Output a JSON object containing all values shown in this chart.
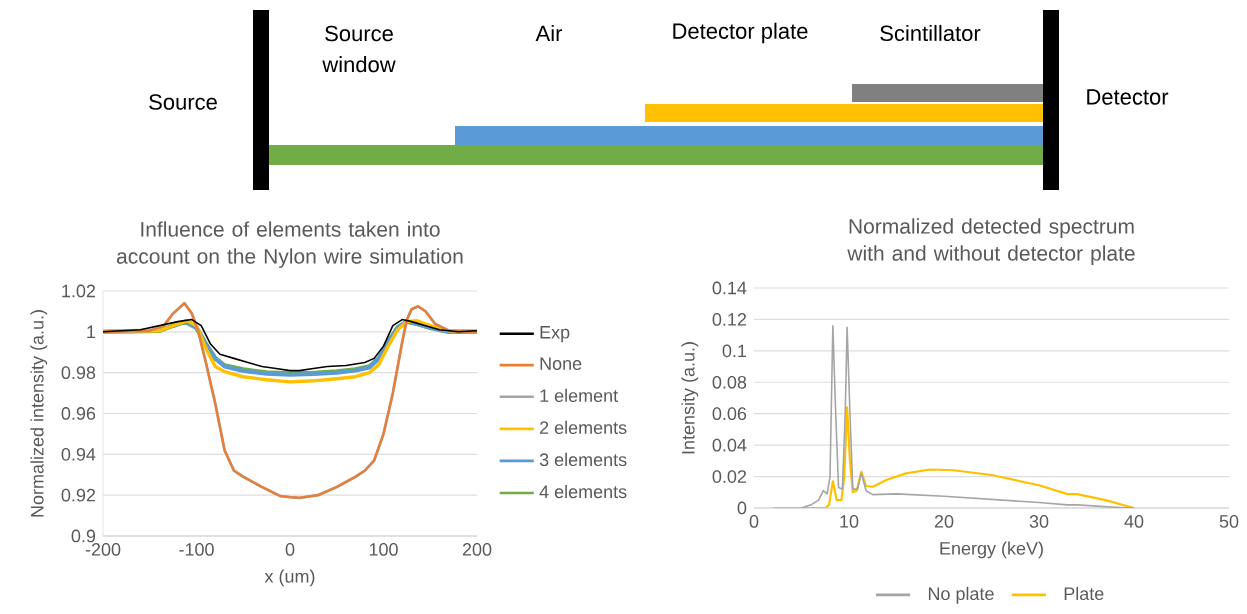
{
  "chart_data": [
    {
      "type": "other",
      "annotations": [
        "Source",
        "Source window",
        "Air",
        "Detector plate",
        "Scintillator",
        "Detector"
      ]
    },
    {
      "type": "line",
      "title": "Influence of elements taken into account on the Nylon wire simulation",
      "xlabel": "x (um)",
      "ylabel": "Normalized intensity (a.u.)",
      "xlim": [
        -200,
        200
      ],
      "ylim": [
        0.9,
        1.02
      ],
      "xticks": [
        -200,
        -100,
        0,
        100,
        200
      ],
      "yticks": [
        0.9,
        0.92,
        0.94,
        0.96,
        0.98,
        1,
        1.02
      ],
      "grid": "y",
      "legend": "right",
      "series": [
        {
          "name": "Exp",
          "color": "#000000",
          "x": [
            -200,
            -160,
            -140,
            -120,
            -105,
            -95,
            -85,
            -75,
            -60,
            -45,
            -30,
            -15,
            0,
            10,
            25,
            40,
            60,
            80,
            90,
            100,
            110,
            120,
            130,
            145,
            160,
            180,
            200
          ],
          "values": [
            1.0,
            1.001,
            1.003,
            1.005,
            1.006,
            1.003,
            0.994,
            0.989,
            0.987,
            0.985,
            0.983,
            0.982,
            0.981,
            0.981,
            0.982,
            0.983,
            0.9835,
            0.985,
            0.987,
            0.993,
            1.003,
            1.006,
            1.005,
            1.003,
            1.001,
            1.0,
            1.0005
          ]
        },
        {
          "name": "None",
          "color": "#ed7d31",
          "x": [
            -200,
            -150,
            -135,
            -125,
            -113,
            -105,
            -98,
            -90,
            -80,
            -70,
            -60,
            -50,
            -30,
            -10,
            0,
            10,
            30,
            50,
            70,
            80,
            90,
            100,
            110,
            120,
            125,
            130,
            137,
            145,
            155,
            170,
            200
          ],
          "values": [
            1.0,
            1.0005,
            1.003,
            1.009,
            1.014,
            1.009,
            1.0,
            0.985,
            0.965,
            0.942,
            0.932,
            0.929,
            0.924,
            0.9195,
            0.919,
            0.9187,
            0.92,
            0.924,
            0.929,
            0.932,
            0.937,
            0.95,
            0.97,
            0.995,
            1.006,
            1.011,
            1.0125,
            1.01,
            1.004,
            1.0005,
            1.0
          ]
        },
        {
          "name": "1 element",
          "color": "#a5a5a5",
          "x": [
            -200,
            -150,
            -135,
            -125,
            -113,
            -105,
            -98,
            -90,
            -80,
            -70,
            -60,
            -50,
            -30,
            -10,
            0,
            10,
            30,
            50,
            70,
            80,
            90,
            100,
            110,
            120,
            125,
            130,
            137,
            145,
            155,
            170,
            200
          ],
          "values": [
            1.0,
            1.0005,
            1.003,
            1.009,
            1.014,
            1.009,
            1.0,
            0.985,
            0.965,
            0.942,
            0.932,
            0.929,
            0.924,
            0.9195,
            0.919,
            0.9187,
            0.92,
            0.924,
            0.929,
            0.932,
            0.937,
            0.95,
            0.97,
            0.995,
            1.006,
            1.011,
            1.0125,
            1.01,
            1.004,
            1.0005,
            1.0
          ]
        },
        {
          "name": "2 elements",
          "color": "#ffc000",
          "x": [
            -200,
            -140,
            -125,
            -110,
            -100,
            -90,
            -80,
            -70,
            -50,
            -25,
            0,
            25,
            50,
            70,
            85,
            95,
            105,
            115,
            125,
            135,
            150,
            170,
            200
          ],
          "values": [
            1.0,
            1.0005,
            1.003,
            1.0055,
            1.003,
            0.992,
            0.983,
            0.9805,
            0.978,
            0.9765,
            0.9755,
            0.976,
            0.977,
            0.978,
            0.98,
            0.984,
            0.993,
            1.001,
            1.005,
            1.0055,
            1.003,
            1.0005,
            1.0
          ]
        },
        {
          "name": "3 elements",
          "color": "#5b9bd5",
          "x": [
            -125,
            -112,
            -100,
            -90,
            -80,
            -70,
            -50,
            -25,
            0,
            25,
            50,
            70,
            85,
            95,
            105,
            115,
            125,
            135,
            150,
            170,
            200
          ],
          "values": [
            1.003,
            1.005,
            1.002,
            0.994,
            0.987,
            0.983,
            0.9808,
            0.9795,
            0.979,
            0.9793,
            0.98,
            0.981,
            0.9825,
            0.987,
            0.995,
            1.002,
            1.005,
            1.004,
            1.002,
            1.0,
            1.0
          ]
        },
        {
          "name": "4 elements",
          "color": "#70ad47",
          "x": [
            -200,
            -140,
            -125,
            -112,
            -100,
            -90,
            -80,
            -70,
            -50,
            -25,
            0,
            25,
            50,
            70,
            85,
            95,
            105,
            115,
            125,
            135,
            150,
            170,
            200
          ],
          "values": [
            1.0,
            1.0005,
            1.003,
            1.005,
            1.002,
            0.994,
            0.987,
            0.9835,
            0.9815,
            0.98,
            0.9795,
            0.9798,
            0.9805,
            0.9815,
            0.983,
            0.987,
            0.995,
            1.002,
            1.005,
            1.004,
            1.002,
            1.0,
            1.0
          ]
        }
      ]
    },
    {
      "type": "line",
      "title": "Normalized detected spectrum with and without detector plate",
      "xlabel": "Energy (keV)",
      "ylabel": "Intensity (a.u.)",
      "xlim": [
        0,
        50
      ],
      "ylim": [
        0,
        0.14
      ],
      "xticks": [
        0,
        10,
        20,
        30,
        40,
        50
      ],
      "yticks": [
        0,
        0.02,
        0.04,
        0.06,
        0.08,
        0.1,
        0.12,
        0.14
      ],
      "grid": "y",
      "legend": "bottom",
      "series": [
        {
          "name": "No plate",
          "color": "#a5a5a5",
          "x": [
            5,
            6,
            6.8,
            7.3,
            7.7,
            8.0,
            8.3,
            8.6,
            8.9,
            9.3,
            9.6,
            9.8,
            10.1,
            10.4,
            10.9,
            11.3,
            11.8,
            12.5,
            15,
            20,
            25,
            30,
            33,
            34,
            38,
            40
          ],
          "values": [
            0,
            0.002,
            0.005,
            0.011,
            0.009,
            0.02,
            0.116,
            0.06,
            0.013,
            0.012,
            0.06,
            0.115,
            0.06,
            0.012,
            0.012,
            0.022,
            0.011,
            0.0085,
            0.009,
            0.0075,
            0.0055,
            0.0035,
            0.002,
            0.002,
            0.0005,
            0
          ]
        },
        {
          "name": "Plate",
          "color": "#ffc000",
          "x": [
            2,
            7.5,
            7.9,
            8.3,
            8.7,
            9.2,
            9.5,
            9.8,
            10.1,
            10.4,
            10.8,
            11.3,
            11.8,
            12.5,
            14,
            16,
            18.5,
            21,
            25,
            30,
            33,
            34,
            37,
            40
          ],
          "values": [
            0,
            0,
            0.002,
            0.017,
            0.005,
            0.005,
            0.02,
            0.064,
            0.03,
            0.01,
            0.011,
            0.023,
            0.014,
            0.0135,
            0.018,
            0.022,
            0.0245,
            0.024,
            0.021,
            0.0145,
            0.0088,
            0.0088,
            0.005,
            0
          ]
        }
      ]
    }
  ]
}
